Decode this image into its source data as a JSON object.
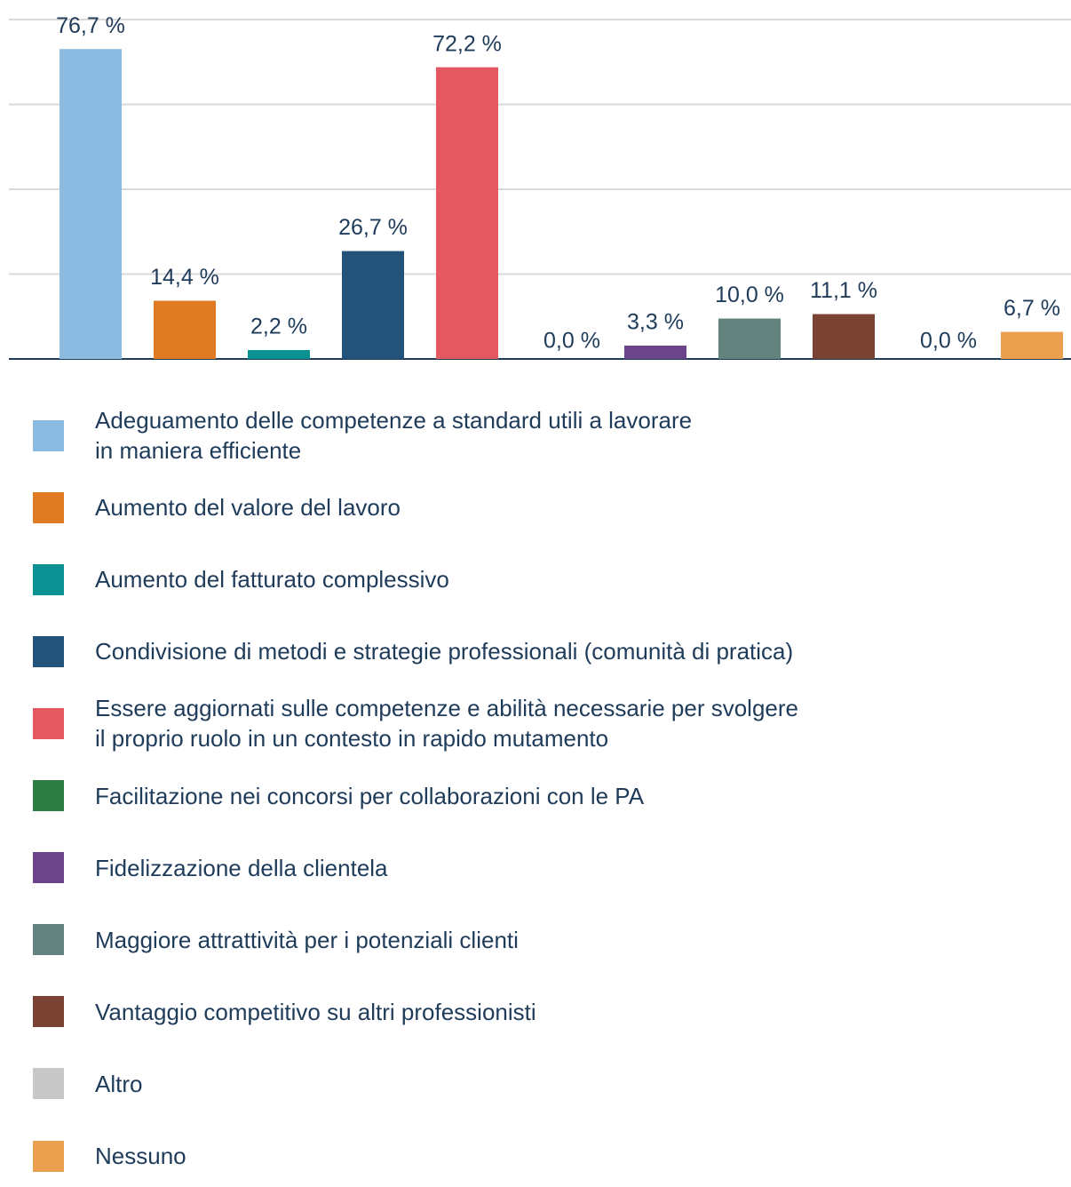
{
  "chart_data": {
    "type": "bar",
    "categories": [
      "Adeguamento delle competenze a standard utili a lavorare\nin maniera efficiente",
      "Aumento del valore del lavoro",
      "Aumento del fatturato complessivo",
      "Condivisione di metodi e strategie professionali (comunità di pratica)",
      "Essere aggiornati sulle competenze e abilità necessarie per svolgere\nil proprio ruolo in un contesto in rapido mutamento",
      "Facilitazione nei concorsi per collaborazioni con le PA",
      "Fidelizzazione della clientela",
      "Maggiore attrattività per i potenziali clienti",
      "Vantaggio competitivo su altri professionisti",
      "Altro",
      "Nessuno"
    ],
    "values": [
      76.7,
      14.4,
      2.2,
      26.7,
      72.2,
      0.0,
      3.3,
      10.0,
      11.1,
      0.0,
      6.7
    ],
    "value_labels": [
      "76,7 %",
      "14,4 %",
      "2,2 %",
      "26,7 %",
      "72,2 %",
      "0,0 %",
      "3,3 %",
      "10,0 %",
      "11,1 %",
      "0,0 %",
      "6,7 %"
    ],
    "colors": [
      "#8bbbe0",
      "#e07b24",
      "#0a9191",
      "#23537a",
      "#e45861",
      "#2e7d45",
      "#6c4489",
      "#62827e",
      "#7a4233",
      "#c8c8c8",
      "#eaa04f"
    ],
    "ylim": [
      0,
      84
    ],
    "yticks": [
      0,
      21,
      42,
      63,
      84
    ],
    "grid": true
  }
}
